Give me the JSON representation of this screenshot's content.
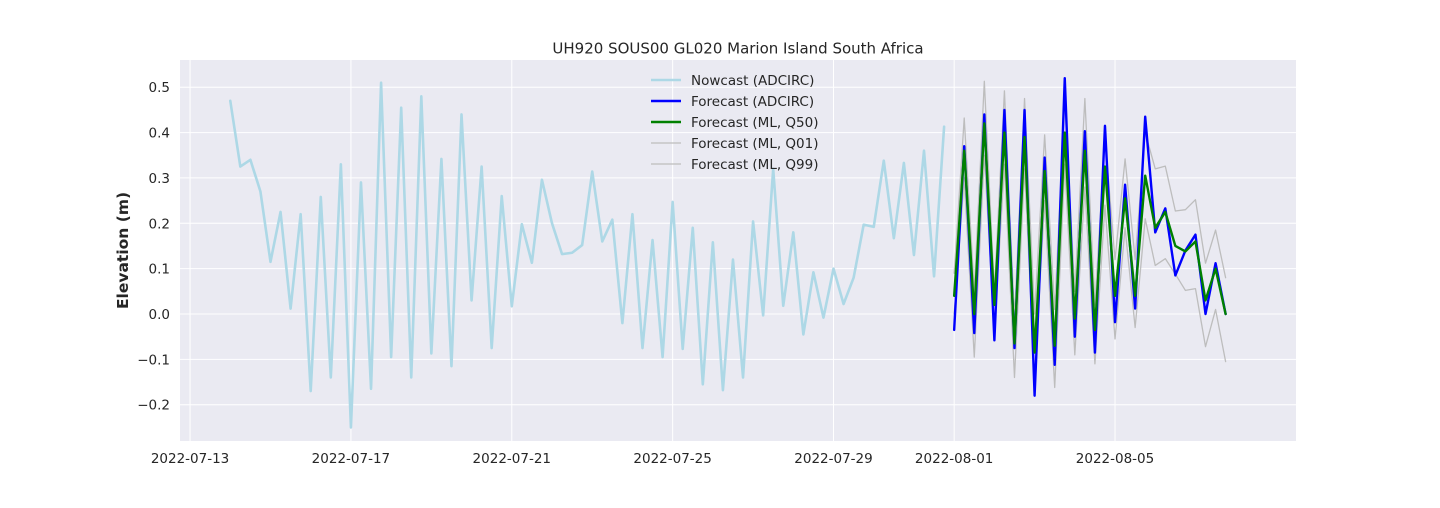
{
  "chart_data": {
    "type": "line",
    "title": "UH920 SOUS00 GL020 Marion Island South Africa",
    "xlabel": "",
    "ylabel": "Elevation (m)",
    "xlim": [
      "2022-07-12T18:00",
      "2022-08-09T12:00"
    ],
    "ylim": [
      -0.28,
      0.56
    ],
    "x_ticks": [
      "2022-07-13",
      "2022-07-17",
      "2022-07-21",
      "2022-07-25",
      "2022-07-29",
      "2022-08-01",
      "2022-08-05"
    ],
    "y_ticks": [
      -0.2,
      -0.1,
      0.0,
      0.1,
      0.2,
      0.3,
      0.4,
      0.5
    ],
    "y_tick_labels": [
      "−0.2",
      "−0.1",
      "0.0",
      "0.1",
      "0.2",
      "0.3",
      "0.4",
      "0.5"
    ],
    "grid": true,
    "legend_position": "top-center",
    "colors": {
      "plot_bg": "#eaeaf2",
      "grid": "#ffffff",
      "nowcast": "#add8e6",
      "forecast_adcirc": "#0000ff",
      "forecast_q50": "#008000",
      "forecast_q01": "#bdbdbd",
      "forecast_q99": "#bdbdbd"
    },
    "series": [
      {
        "name": "Nowcast (ADCIRC)",
        "color_key": "nowcast",
        "width": 2.6,
        "x": [
          "2022-07-14T00:00",
          "2022-07-14T06:00",
          "2022-07-14T12:00",
          "2022-07-14T18:00",
          "2022-07-15T00:00",
          "2022-07-15T06:00",
          "2022-07-15T12:00",
          "2022-07-15T18:00",
          "2022-07-16T00:00",
          "2022-07-16T06:00",
          "2022-07-16T12:00",
          "2022-07-16T18:00",
          "2022-07-17T00:00",
          "2022-07-17T06:00",
          "2022-07-17T12:00",
          "2022-07-17T18:00",
          "2022-07-18T00:00",
          "2022-07-18T06:00",
          "2022-07-18T12:00",
          "2022-07-18T18:00",
          "2022-07-19T00:00",
          "2022-07-19T06:00",
          "2022-07-19T12:00",
          "2022-07-19T18:00",
          "2022-07-20T00:00",
          "2022-07-20T06:00",
          "2022-07-20T12:00",
          "2022-07-20T18:00",
          "2022-07-21T00:00",
          "2022-07-21T06:00",
          "2022-07-21T12:00",
          "2022-07-21T18:00",
          "2022-07-22T00:00",
          "2022-07-22T06:00",
          "2022-07-22T12:00",
          "2022-07-22T18:00",
          "2022-07-23T00:00",
          "2022-07-23T06:00",
          "2022-07-23T12:00",
          "2022-07-23T18:00",
          "2022-07-24T00:00",
          "2022-07-24T06:00",
          "2022-07-24T12:00",
          "2022-07-24T18:00",
          "2022-07-25T00:00",
          "2022-07-25T06:00",
          "2022-07-25T12:00",
          "2022-07-25T18:00",
          "2022-07-26T00:00",
          "2022-07-26T06:00",
          "2022-07-26T12:00",
          "2022-07-26T18:00",
          "2022-07-27T00:00",
          "2022-07-27T06:00",
          "2022-07-27T12:00",
          "2022-07-27T18:00",
          "2022-07-28T00:00",
          "2022-07-28T06:00",
          "2022-07-28T12:00",
          "2022-07-28T18:00",
          "2022-07-29T00:00",
          "2022-07-29T06:00",
          "2022-07-29T12:00",
          "2022-07-29T18:00",
          "2022-07-30T00:00",
          "2022-07-30T06:00",
          "2022-07-30T12:00",
          "2022-07-30T18:00",
          "2022-07-31T00:00",
          "2022-07-31T06:00",
          "2022-07-31T12:00",
          "2022-07-31T18:00"
        ],
        "y": [
          0.47,
          0.325,
          0.34,
          0.27,
          0.115,
          0.225,
          0.012,
          0.22,
          -0.17,
          0.258,
          -0.14,
          0.33,
          -0.25,
          0.29,
          -0.165,
          0.51,
          -0.095,
          0.455,
          -0.14,
          0.48,
          -0.087,
          0.342,
          -0.115,
          0.44,
          0.03,
          0.325,
          -0.075,
          0.26,
          0.017,
          0.198,
          0.113,
          0.296,
          0.2,
          0.132,
          0.135,
          0.152,
          0.314,
          0.16,
          0.208,
          -0.02,
          0.22,
          -0.075,
          0.163,
          -0.095,
          0.247,
          -0.077,
          0.19,
          -0.155,
          0.158,
          -0.168,
          0.12,
          -0.14,
          0.204,
          -0.003,
          0.32,
          0.018,
          0.18,
          -0.045,
          0.092,
          -0.008,
          0.1,
          0.022,
          0.08,
          0.197,
          0.192,
          0.338,
          0.167,
          0.333,
          0.13,
          0.36,
          0.083,
          0.413
        ]
      },
      {
        "name": "Forecast (ADCIRC)",
        "color_key": "forecast_adcirc",
        "width": 2.4,
        "x": [
          "2022-08-01T00:00",
          "2022-08-01T06:00",
          "2022-08-01T12:00",
          "2022-08-01T18:00",
          "2022-08-02T00:00",
          "2022-08-02T06:00",
          "2022-08-02T12:00",
          "2022-08-02T18:00",
          "2022-08-03T00:00",
          "2022-08-03T06:00",
          "2022-08-03T12:00",
          "2022-08-03T18:00",
          "2022-08-04T00:00",
          "2022-08-04T06:00",
          "2022-08-04T12:00",
          "2022-08-04T18:00",
          "2022-08-05T00:00",
          "2022-08-05T06:00",
          "2022-08-05T12:00",
          "2022-08-05T18:00",
          "2022-08-06T00:00",
          "2022-08-06T06:00",
          "2022-08-06T12:00",
          "2022-08-06T18:00",
          "2022-08-07T00:00",
          "2022-08-07T06:00",
          "2022-08-07T12:00",
          "2022-08-07T18:00"
        ],
        "y": [
          -0.035,
          0.37,
          -0.042,
          0.44,
          -0.058,
          0.45,
          -0.075,
          0.45,
          -0.18,
          0.345,
          -0.112,
          0.52,
          -0.05,
          0.403,
          -0.085,
          0.415,
          -0.018,
          0.285,
          0.012,
          0.435,
          0.18,
          0.233,
          0.085,
          0.14,
          0.175,
          0.0,
          0.112,
          0.0
        ]
      },
      {
        "name": "Forecast (ML, Q50)",
        "color_key": "forecast_q50",
        "width": 2.4,
        "x": [
          "2022-08-01T00:00",
          "2022-08-01T06:00",
          "2022-08-01T12:00",
          "2022-08-01T18:00",
          "2022-08-02T00:00",
          "2022-08-02T06:00",
          "2022-08-02T12:00",
          "2022-08-02T18:00",
          "2022-08-03T00:00",
          "2022-08-03T06:00",
          "2022-08-03T12:00",
          "2022-08-03T18:00",
          "2022-08-04T00:00",
          "2022-08-04T06:00",
          "2022-08-04T12:00",
          "2022-08-04T18:00",
          "2022-08-05T00:00",
          "2022-08-05T06:00",
          "2022-08-05T12:00",
          "2022-08-05T18:00",
          "2022-08-06T00:00",
          "2022-08-06T06:00",
          "2022-08-06T12:00",
          "2022-08-06T18:00",
          "2022-08-07T00:00",
          "2022-08-07T06:00",
          "2022-08-07T12:00",
          "2022-08-07T18:00"
        ],
        "y": [
          0.04,
          0.36,
          0.0,
          0.42,
          0.02,
          0.4,
          -0.065,
          0.39,
          -0.085,
          0.315,
          -0.07,
          0.4,
          -0.01,
          0.36,
          -0.035,
          0.325,
          0.04,
          0.255,
          0.04,
          0.305,
          0.19,
          0.225,
          0.15,
          0.138,
          0.16,
          0.03,
          0.1,
          0.0
        ]
      },
      {
        "name": "Forecast (ML, Q01)",
        "color_key": "forecast_q01",
        "width": 1.3,
        "x": [
          "2022-08-01T00:00",
          "2022-08-01T06:00",
          "2022-08-01T12:00",
          "2022-08-01T18:00",
          "2022-08-02T00:00",
          "2022-08-02T06:00",
          "2022-08-02T12:00",
          "2022-08-02T18:00",
          "2022-08-03T00:00",
          "2022-08-03T06:00",
          "2022-08-03T12:00",
          "2022-08-03T18:00",
          "2022-08-04T00:00",
          "2022-08-04T06:00",
          "2022-08-04T12:00",
          "2022-08-04T18:00",
          "2022-08-05T00:00",
          "2022-08-05T06:00",
          "2022-08-05T12:00",
          "2022-08-05T18:00",
          "2022-08-06T00:00",
          "2022-08-06T06:00",
          "2022-08-06T12:00",
          "2022-08-06T18:00",
          "2022-08-07T00:00",
          "2022-08-07T06:00",
          "2022-08-07T12:00",
          "2022-08-07T18:00"
        ],
        "y": [
          0.0,
          0.3,
          -0.095,
          0.35,
          -0.04,
          0.33,
          -0.14,
          0.32,
          -0.14,
          0.25,
          -0.162,
          0.33,
          -0.09,
          0.28,
          -0.11,
          0.24,
          -0.055,
          0.19,
          -0.03,
          0.21,
          0.107,
          0.122,
          0.088,
          0.052,
          0.056,
          -0.072,
          0.01,
          -0.105
        ]
      },
      {
        "name": "Forecast (ML, Q99)",
        "color_key": "forecast_q99",
        "width": 1.3,
        "x": [
          "2022-08-01T00:00",
          "2022-08-01T06:00",
          "2022-08-01T12:00",
          "2022-08-01T18:00",
          "2022-08-02T00:00",
          "2022-08-02T06:00",
          "2022-08-02T12:00",
          "2022-08-02T18:00",
          "2022-08-03T00:00",
          "2022-08-03T06:00",
          "2022-08-03T12:00",
          "2022-08-03T18:00",
          "2022-08-04T00:00",
          "2022-08-04T06:00",
          "2022-08-04T12:00",
          "2022-08-04T18:00",
          "2022-08-05T00:00",
          "2022-08-05T06:00",
          "2022-08-05T12:00",
          "2022-08-05T18:00",
          "2022-08-06T00:00",
          "2022-08-06T06:00",
          "2022-08-06T12:00",
          "2022-08-06T18:00",
          "2022-08-07T00:00",
          "2022-08-07T06:00",
          "2022-08-07T12:00",
          "2022-08-07T18:00"
        ],
        "y": [
          0.09,
          0.432,
          0.05,
          0.513,
          0.05,
          0.492,
          -0.01,
          0.475,
          0.0,
          0.395,
          0.01,
          0.47,
          0.05,
          0.475,
          0.02,
          0.39,
          0.12,
          0.342,
          0.12,
          0.4,
          0.32,
          0.326,
          0.227,
          0.23,
          0.252,
          0.112,
          0.185,
          0.08
        ]
      }
    ]
  }
}
